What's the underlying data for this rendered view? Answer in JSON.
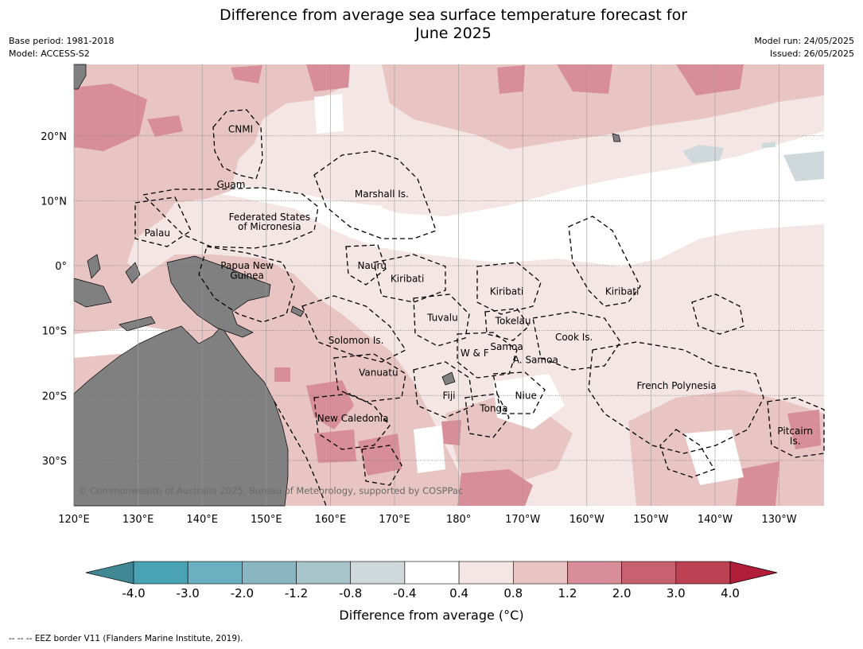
{
  "title_line1": "Difference from average sea surface temperature forecast for",
  "title_line2": "June 2025",
  "meta": {
    "base_period": "Base period: 1981-2018",
    "model": "Model: ACCESS-S2",
    "model_run": "Model run: 24/05/2025",
    "issued": "Issued: 26/05/2025"
  },
  "map": {
    "lon_range": [
      120,
      237
    ],
    "lat_range": [
      -37,
      31
    ],
    "lon_ticks": [
      {
        "lon": 120,
        "label": "120°E"
      },
      {
        "lon": 130,
        "label": "130°E"
      },
      {
        "lon": 140,
        "label": "140°E"
      },
      {
        "lon": 150,
        "label": "150°E"
      },
      {
        "lon": 160,
        "label": "160°E"
      },
      {
        "lon": 170,
        "label": "170°E"
      },
      {
        "lon": 180,
        "label": "180°"
      },
      {
        "lon": 190,
        "label": "170°W"
      },
      {
        "lon": 200,
        "label": "160°W"
      },
      {
        "lon": 210,
        "label": "150°W"
      },
      {
        "lon": 220,
        "label": "140°W"
      },
      {
        "lon": 230,
        "label": "130°W"
      }
    ],
    "lat_ticks": [
      {
        "lat": 20,
        "label": "20°N"
      },
      {
        "lat": 10,
        "label": "10°N"
      },
      {
        "lat": 0,
        "label": "0°"
      },
      {
        "lat": -10,
        "label": "10°S"
      },
      {
        "lat": -20,
        "label": "20°S"
      },
      {
        "lat": -30,
        "label": "30°S"
      }
    ],
    "colors": {
      "land": "#808080",
      "anom_0_4_0_8": "#f4e6e5",
      "anom_0_8_1_2": "#e8c5c3",
      "anom_1_2_2_0": "#d78e98",
      "anom_neg": "#cfd8da"
    },
    "region_labels": [
      {
        "text": "CNMI",
        "lon": 146,
        "lat": 21
      },
      {
        "text": "Guam",
        "lon": 144.5,
        "lat": 12.5
      },
      {
        "text": "Marshall Is.",
        "lon": 168,
        "lat": 11
      },
      {
        "text": "Federated States",
        "lon": 150.5,
        "lat": 7.5
      },
      {
        "text": "of Micronesia",
        "lon": 150.5,
        "lat": 6
      },
      {
        "text": "Palau",
        "lon": 133,
        "lat": 5
      },
      {
        "text": "Papua New",
        "lon": 147,
        "lat": 0
      },
      {
        "text": "Guinea",
        "lon": 147,
        "lat": -1.5
      },
      {
        "text": "Nauru",
        "lon": 166.5,
        "lat": 0
      },
      {
        "text": "Kiribati",
        "lon": 172,
        "lat": -2
      },
      {
        "text": "Kiribati",
        "lon": 187.5,
        "lat": -4
      },
      {
        "text": "Kiribati",
        "lon": 205.5,
        "lat": -4
      },
      {
        "text": "Tuvalu",
        "lon": 177.5,
        "lat": -8
      },
      {
        "text": "Tokelau",
        "lon": 188.5,
        "lat": -8.5
      },
      {
        "text": "Cook Is.",
        "lon": 198,
        "lat": -11
      },
      {
        "text": "Solomon Is.",
        "lon": 164,
        "lat": -11.5
      },
      {
        "text": "W & F",
        "lon": 182.5,
        "lat": -13.5
      },
      {
        "text": "Samoa",
        "lon": 187.5,
        "lat": -12.5
      },
      {
        "text": "A. Samoa",
        "lon": 192,
        "lat": -14.5
      },
      {
        "text": "Vanuatu",
        "lon": 167.5,
        "lat": -16.5
      },
      {
        "text": "Fiji",
        "lon": 178.5,
        "lat": -20
      },
      {
        "text": "Niue",
        "lon": 190.5,
        "lat": -20
      },
      {
        "text": "Tonga",
        "lon": 185.5,
        "lat": -22
      },
      {
        "text": "French Polynesia",
        "lon": 214,
        "lat": -18.5
      },
      {
        "text": "New Caledonia",
        "lon": 163.5,
        "lat": -23.5
      },
      {
        "text": "Pitcairn",
        "lon": 232.5,
        "lat": -25.5
      },
      {
        "text": "Is.",
        "lon": 232.5,
        "lat": -27
      }
    ],
    "copyright": "© Commonwealth of Australia 2025, Bureau of Meteorology, supported by COSPPac"
  },
  "colorbar": {
    "bins": [
      {
        "color": "#3f8894"
      },
      {
        "color": "#4aa2b5"
      },
      {
        "color": "#6bb0bf"
      },
      {
        "color": "#8ab6c2"
      },
      {
        "color": "#a8c5cb"
      },
      {
        "color": "#cfd8da"
      },
      {
        "color": "#ffffff"
      },
      {
        "color": "#f4e6e5"
      },
      {
        "color": "#e8c5c3"
      },
      {
        "color": "#d78e98"
      },
      {
        "color": "#c8616f"
      },
      {
        "color": "#bc4253"
      },
      {
        "color": "#b21d3a"
      }
    ],
    "tick_labels": [
      "-4.0",
      "-3.0",
      "-2.0",
      "-1.2",
      "-0.8",
      "-0.4",
      "0.4",
      "0.8",
      "1.2",
      "2.0",
      "3.0",
      "4.0"
    ],
    "label": "Difference from average (°C)"
  },
  "footer": "--  --  -- EEZ border V11 (Flanders Marine Institute, 2019)."
}
